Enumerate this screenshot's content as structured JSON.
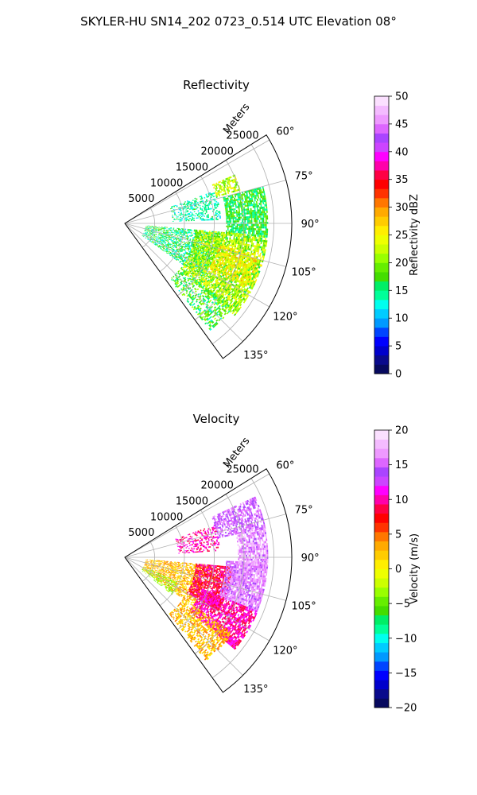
{
  "figure": {
    "suptitle": "SKYLER-HU  SN14_202  0723_0.514 UTC Elevation 08°"
  },
  "chart_data": [
    {
      "type": "heatmap",
      "projection": "polar-sector",
      "title": "Reflectivity",
      "radial_axis_label": "Meters",
      "range_ticks": [
        "5000",
        "10000",
        "15000",
        "20000",
        "25000"
      ],
      "range_lim": [
        0,
        28000
      ],
      "azimuth_ticks": [
        "60°",
        "75°",
        "90°",
        "105°",
        "120°",
        "135°"
      ],
      "azimuth_range_deg": [
        58,
        144
      ],
      "grid": true,
      "field": "reflectivity",
      "colorbar": {
        "label": "Reflectivity dBZ",
        "ticks": [
          "0",
          "5",
          "10",
          "15",
          "20",
          "25",
          "30",
          "35",
          "40",
          "45",
          "50"
        ],
        "vmin": 0,
        "vmax": 50,
        "colors": [
          "#07095e",
          "#0a0a8c",
          "#0000cc",
          "#0000ff",
          "#0044ff",
          "#0099ff",
          "#00ccff",
          "#00ffee",
          "#00ff99",
          "#00ee66",
          "#44dd00",
          "#66ee00",
          "#99ff00",
          "#ccff00",
          "#eeff00",
          "#ffee00",
          "#ffcc00",
          "#ffaa00",
          "#ff7700",
          "#ff3300",
          "#ff0000",
          "#ff0044",
          "#ff00aa",
          "#ff00ff",
          "#cc44ff",
          "#aa44ff",
          "#dd66ff",
          "#ee99ff",
          "#f4bbff",
          "#fbe0ff"
        ]
      },
      "echo_regions": [
        {
          "az_min": 70,
          "az_max": 88,
          "r_min": 8000,
          "r_max": 16000,
          "dbz_min": 11,
          "dbz_max": 17,
          "density": 0.4
        },
        {
          "az_min": 66,
          "az_max": 74,
          "r_min": 16000,
          "r_max": 20000,
          "dbz_min": 18,
          "dbz_max": 27,
          "density": 0.55
        },
        {
          "az_min": 75,
          "az_max": 95,
          "r_min": 17000,
          "r_max": 24000,
          "dbz_min": 13,
          "dbz_max": 20,
          "density": 0.75
        },
        {
          "az_min": 95,
          "az_max": 125,
          "r_min": 3500,
          "r_max": 16000,
          "dbz_min": 11,
          "dbz_max": 20,
          "density": 0.55
        },
        {
          "az_min": 95,
          "az_max": 130,
          "r_min": 12000,
          "r_max": 24000,
          "dbz_min": 16,
          "dbz_max": 26,
          "density": 0.78
        },
        {
          "az_min": 103,
          "az_max": 118,
          "r_min": 16000,
          "r_max": 23000,
          "dbz_min": 22,
          "dbz_max": 29,
          "density": 0.55
        },
        {
          "az_min": 128,
          "az_max": 141,
          "r_min": 12000,
          "r_max": 23000,
          "dbz_min": 13,
          "dbz_max": 22,
          "density": 0.45
        }
      ]
    },
    {
      "type": "heatmap",
      "projection": "polar-sector",
      "title": "Velocity",
      "radial_axis_label": "Meters",
      "range_ticks": [
        "5000",
        "10000",
        "15000",
        "20000",
        "25000"
      ],
      "range_lim": [
        0,
        28000
      ],
      "azimuth_ticks": [
        "60°",
        "75°",
        "90°",
        "105°",
        "120°",
        "135°"
      ],
      "azimuth_range_deg": [
        58,
        144
      ],
      "grid": true,
      "field": "velocity",
      "colorbar": {
        "label": "Velocity (m/s)",
        "ticks": [
          "−20",
          "−15",
          "−10",
          "−5",
          "0",
          "5",
          "10",
          "15",
          "20"
        ],
        "vmin": -20,
        "vmax": 20,
        "colors": [
          "#07095e",
          "#0a0a8c",
          "#0000cc",
          "#0000ff",
          "#0044ff",
          "#0099ff",
          "#00ccff",
          "#00ffee",
          "#00ff99",
          "#00ee66",
          "#44dd00",
          "#66ee00",
          "#99ff00",
          "#ccff00",
          "#eeff00",
          "#ffee00",
          "#ffcc00",
          "#ffaa00",
          "#ff7700",
          "#ff3300",
          "#ff0000",
          "#ff0044",
          "#ff00aa",
          "#ff00ff",
          "#cc44ff",
          "#aa44ff",
          "#dd66ff",
          "#ee99ff",
          "#f4bbff",
          "#fbe0ff"
        ]
      },
      "echo_regions": [
        {
          "az_min": 70,
          "az_max": 86,
          "r_min": 9000,
          "r_max": 16000,
          "vel_min": 8,
          "vel_max": 12,
          "density": 0.4
        },
        {
          "az_min": 65,
          "az_max": 78,
          "r_min": 16000,
          "r_max": 24000,
          "vel_min": 13,
          "vel_max": 17,
          "density": 0.65
        },
        {
          "az_min": 78,
          "az_max": 94,
          "r_min": 19000,
          "r_max": 24000,
          "vel_min": 14,
          "vel_max": 19,
          "density": 0.8
        },
        {
          "az_min": 95,
          "az_max": 125,
          "r_min": 3500,
          "r_max": 14000,
          "vel_min": 0,
          "vel_max": 5,
          "density": 0.6
        },
        {
          "az_min": 95,
          "az_max": 120,
          "r_min": 12000,
          "r_max": 18000,
          "vel_min": 6,
          "vel_max": 11,
          "density": 0.8
        },
        {
          "az_min": 92,
          "az_max": 112,
          "r_min": 17000,
          "r_max": 24000,
          "vel_min": 14,
          "vel_max": 18,
          "density": 0.85
        },
        {
          "az_min": 112,
          "az_max": 130,
          "r_min": 14000,
          "r_max": 24000,
          "vel_min": 8,
          "vel_max": 12,
          "density": 0.75
        },
        {
          "az_min": 125,
          "az_max": 142,
          "r_min": 12000,
          "r_max": 22000,
          "vel_min": 0,
          "vel_max": 5,
          "density": 0.55
        },
        {
          "az_min": 115,
          "az_max": 128,
          "r_min": 3500,
          "r_max": 10000,
          "vel_min": -5,
          "vel_max": -2,
          "density": 0.4
        }
      ]
    }
  ]
}
